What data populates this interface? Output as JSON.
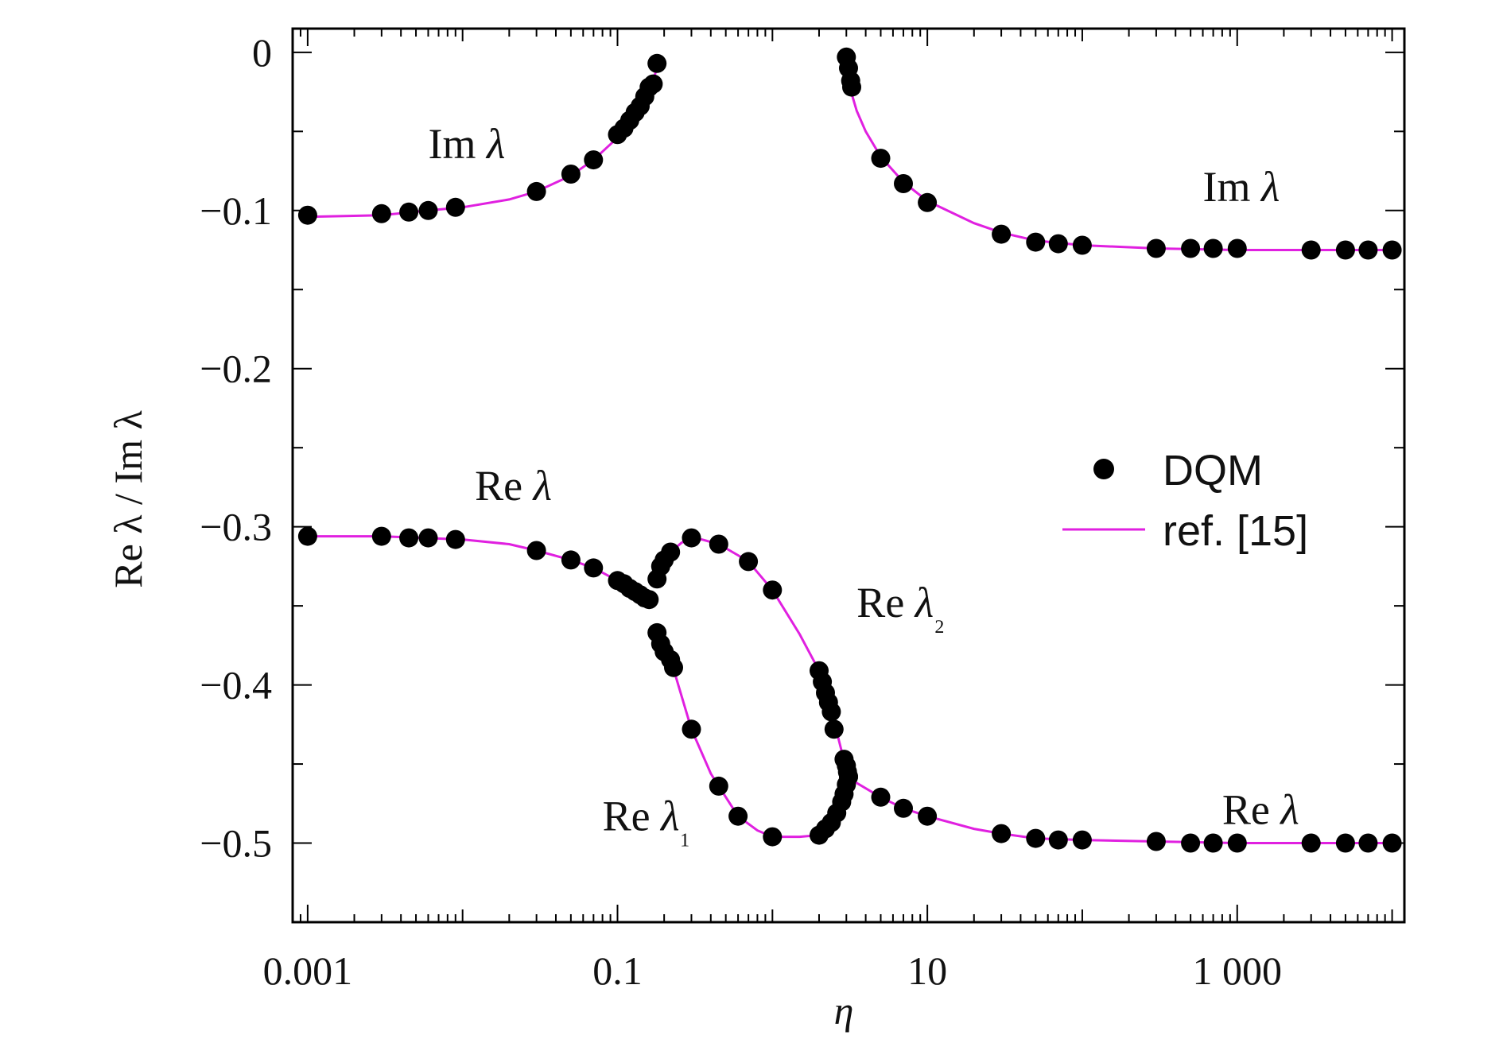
{
  "chart_data": {
    "type": "scatter",
    "xlabel": "η",
    "ylabel": "Re λ / Im λ",
    "xscale": "log",
    "xlim": [
      0.0008,
      12000
    ],
    "ylim": [
      -0.55,
      0.015
    ],
    "grid": false,
    "legend_position": "right-middle",
    "x_ticks": [
      {
        "value": 0.001,
        "label": "0.001"
      },
      {
        "value": 0.1,
        "label": "0.1"
      },
      {
        "value": 10,
        "label": "10"
      },
      {
        "value": 1000,
        "label": "1 000"
      }
    ],
    "y_ticks": [
      {
        "value": 0,
        "label": "0"
      },
      {
        "value": -0.1,
        "label": "−0.1"
      },
      {
        "value": -0.2,
        "label": "−0.2"
      },
      {
        "value": -0.3,
        "label": "−0.3"
      },
      {
        "value": -0.4,
        "label": "−0.4"
      },
      {
        "value": -0.5,
        "label": "−0.5"
      }
    ],
    "colors": {
      "markers": "#000000",
      "reference": "#e020e0",
      "axes": "#000000"
    },
    "legend": [
      {
        "label": "DQM",
        "style": "marker",
        "color": "#000000"
      },
      {
        "label": "ref. [15]",
        "style": "line",
        "color": "#e020e0"
      }
    ],
    "annotations": [
      {
        "text": "Im",
        "symbol": "λ",
        "sub": "",
        "x": 0.006,
        "y": -0.067
      },
      {
        "text": "Im",
        "symbol": "λ",
        "sub": "",
        "x": 600,
        "y": -0.094
      },
      {
        "text": "Re",
        "symbol": "λ",
        "sub": "",
        "x": 0.012,
        "y": -0.283
      },
      {
        "text": "Re",
        "symbol": "λ",
        "sub": "₂",
        "x": 3.5,
        "y": -0.357
      },
      {
        "text": "Re",
        "symbol": "λ",
        "sub": "₁",
        "x": 0.08,
        "y": -0.492
      },
      {
        "text": "Re",
        "symbol": "λ",
        "sub": "",
        "x": 800,
        "y": -0.488
      }
    ],
    "series": [
      {
        "name": "DQM",
        "style": "markers",
        "color": "#000000",
        "points": [
          [
            0.001,
            -0.103
          ],
          [
            0.003,
            -0.102
          ],
          [
            0.0045,
            -0.101
          ],
          [
            0.006,
            -0.1
          ],
          [
            0.009,
            -0.098
          ],
          [
            0.03,
            -0.088
          ],
          [
            0.05,
            -0.077
          ],
          [
            0.07,
            -0.068
          ],
          [
            0.1,
            -0.052
          ],
          [
            0.11,
            -0.048
          ],
          [
            0.12,
            -0.043
          ],
          [
            0.13,
            -0.038
          ],
          [
            0.14,
            -0.034
          ],
          [
            0.15,
            -0.028
          ],
          [
            0.16,
            -0.022
          ],
          [
            0.17,
            -0.02
          ],
          [
            0.18,
            -0.007
          ],
          [
            3.0,
            -0.003
          ],
          [
            3.1,
            -0.01
          ],
          [
            3.2,
            -0.018
          ],
          [
            3.25,
            -0.022
          ],
          [
            5.0,
            -0.067
          ],
          [
            7.0,
            -0.083
          ],
          [
            10.0,
            -0.095
          ],
          [
            30.0,
            -0.115
          ],
          [
            50.0,
            -0.12
          ],
          [
            70.0,
            -0.121
          ],
          [
            100.0,
            -0.122
          ],
          [
            300.0,
            -0.124
          ],
          [
            500.0,
            -0.124
          ],
          [
            700.0,
            -0.124
          ],
          [
            1000.0,
            -0.124
          ],
          [
            3000.0,
            -0.125
          ],
          [
            5000.0,
            -0.125
          ],
          [
            7000.0,
            -0.125
          ],
          [
            10000.0,
            -0.125
          ],
          [
            0.001,
            -0.306
          ],
          [
            0.003,
            -0.306
          ],
          [
            0.0045,
            -0.307
          ],
          [
            0.006,
            -0.307
          ],
          [
            0.009,
            -0.308
          ],
          [
            0.03,
            -0.315
          ],
          [
            0.05,
            -0.321
          ],
          [
            0.07,
            -0.326
          ],
          [
            0.1,
            -0.334
          ],
          [
            0.11,
            -0.336
          ],
          [
            0.12,
            -0.339
          ],
          [
            0.13,
            -0.341
          ],
          [
            0.14,
            -0.343
          ],
          [
            0.15,
            -0.345
          ],
          [
            0.16,
            -0.346
          ],
          [
            0.18,
            -0.333
          ],
          [
            0.19,
            -0.325
          ],
          [
            0.2,
            -0.321
          ],
          [
            0.22,
            -0.316
          ],
          [
            0.3,
            -0.307
          ],
          [
            0.45,
            -0.311
          ],
          [
            0.7,
            -0.322
          ],
          [
            1.0,
            -0.34
          ],
          [
            2.0,
            -0.391
          ],
          [
            2.1,
            -0.398
          ],
          [
            2.2,
            -0.405
          ],
          [
            2.3,
            -0.411
          ],
          [
            2.4,
            -0.417
          ],
          [
            2.5,
            -0.428
          ],
          [
            2.9,
            -0.447
          ],
          [
            3.0,
            -0.451
          ],
          [
            3.05,
            -0.455
          ],
          [
            3.1,
            -0.458
          ],
          [
            0.18,
            -0.367
          ],
          [
            0.19,
            -0.374
          ],
          [
            0.2,
            -0.379
          ],
          [
            0.22,
            -0.384
          ],
          [
            0.23,
            -0.389
          ],
          [
            0.3,
            -0.428
          ],
          [
            0.45,
            -0.464
          ],
          [
            0.6,
            -0.483
          ],
          [
            1.0,
            -0.496
          ],
          [
            2.0,
            -0.495
          ],
          [
            2.2,
            -0.491
          ],
          [
            2.4,
            -0.487
          ],
          [
            2.6,
            -0.481
          ],
          [
            2.8,
            -0.474
          ],
          [
            2.9,
            -0.469
          ],
          [
            3.0,
            -0.463
          ],
          [
            3.1,
            -0.458
          ],
          [
            5.0,
            -0.471
          ],
          [
            7.0,
            -0.478
          ],
          [
            10.0,
            -0.483
          ],
          [
            30.0,
            -0.494
          ],
          [
            50.0,
            -0.497
          ],
          [
            70.0,
            -0.498
          ],
          [
            100.0,
            -0.498
          ],
          [
            300.0,
            -0.499
          ],
          [
            500.0,
            -0.5
          ],
          [
            700.0,
            -0.5
          ],
          [
            1000.0,
            -0.5
          ],
          [
            3000.0,
            -0.5
          ],
          [
            5000.0,
            -0.5
          ],
          [
            7000.0,
            -0.5
          ],
          [
            10000.0,
            -0.5
          ]
        ]
      },
      {
        "name": "ref. [15]",
        "style": "line",
        "color": "#e020e0",
        "segments": [
          [
            [
              0.001,
              -0.104
            ],
            [
              0.003,
              -0.103
            ],
            [
              0.006,
              -0.1
            ],
            [
              0.01,
              -0.098
            ],
            [
              0.02,
              -0.093
            ],
            [
              0.03,
              -0.088
            ],
            [
              0.05,
              -0.078
            ],
            [
              0.07,
              -0.068
            ],
            [
              0.1,
              -0.054
            ],
            [
              0.13,
              -0.039
            ],
            [
              0.15,
              -0.03
            ],
            [
              0.17,
              -0.018
            ],
            [
              0.185,
              -0.005
            ]
          ],
          [
            [
              2.95,
              -0.002
            ],
            [
              3.05,
              -0.012
            ],
            [
              3.2,
              -0.024
            ],
            [
              3.5,
              -0.037
            ],
            [
              4.0,
              -0.05
            ],
            [
              5.0,
              -0.066
            ],
            [
              7.0,
              -0.082
            ],
            [
              10.0,
              -0.094
            ],
            [
              20.0,
              -0.108
            ],
            [
              30.0,
              -0.114
            ],
            [
              50.0,
              -0.119
            ],
            [
              100.0,
              -0.122
            ],
            [
              300.0,
              -0.124
            ],
            [
              1000.0,
              -0.125
            ],
            [
              10000.0,
              -0.125
            ]
          ],
          [
            [
              0.001,
              -0.306
            ],
            [
              0.003,
              -0.306
            ],
            [
              0.01,
              -0.308
            ],
            [
              0.02,
              -0.311
            ],
            [
              0.03,
              -0.315
            ],
            [
              0.05,
              -0.321
            ],
            [
              0.07,
              -0.326
            ],
            [
              0.1,
              -0.334
            ],
            [
              0.13,
              -0.341
            ],
            [
              0.165,
              -0.347
            ]
          ],
          [
            [
              0.175,
              -0.334
            ],
            [
              0.19,
              -0.325
            ],
            [
              0.22,
              -0.316
            ],
            [
              0.26,
              -0.31
            ],
            [
              0.3,
              -0.308
            ],
            [
              0.35,
              -0.308
            ],
            [
              0.45,
              -0.311
            ],
            [
              0.6,
              -0.318
            ],
            [
              0.7,
              -0.322
            ],
            [
              1.0,
              -0.34
            ],
            [
              1.5,
              -0.368
            ],
            [
              2.0,
              -0.391
            ],
            [
              2.5,
              -0.423
            ],
            [
              2.8,
              -0.442
            ],
            [
              3.0,
              -0.451
            ],
            [
              3.1,
              -0.457
            ]
          ],
          [
            [
              0.175,
              -0.365
            ],
            [
              0.2,
              -0.379
            ],
            [
              0.23,
              -0.39
            ],
            [
              0.3,
              -0.428
            ],
            [
              0.4,
              -0.456
            ],
            [
              0.45,
              -0.464
            ],
            [
              0.6,
              -0.483
            ],
            [
              0.8,
              -0.492
            ],
            [
              1.0,
              -0.496
            ],
            [
              1.5,
              -0.496
            ],
            [
              2.0,
              -0.495
            ],
            [
              2.4,
              -0.487
            ],
            [
              2.8,
              -0.474
            ],
            [
              3.0,
              -0.463
            ],
            [
              3.1,
              -0.458
            ]
          ],
          [
            [
              3.1,
              -0.457
            ],
            [
              3.5,
              -0.462
            ],
            [
              5.0,
              -0.471
            ],
            [
              7.0,
              -0.478
            ],
            [
              10.0,
              -0.483
            ],
            [
              20.0,
              -0.491
            ],
            [
              30.0,
              -0.494
            ],
            [
              50.0,
              -0.497
            ],
            [
              100.0,
              -0.498
            ],
            [
              300.0,
              -0.499
            ],
            [
              1000.0,
              -0.5
            ],
            [
              10000.0,
              -0.5
            ]
          ]
        ]
      }
    ]
  }
}
